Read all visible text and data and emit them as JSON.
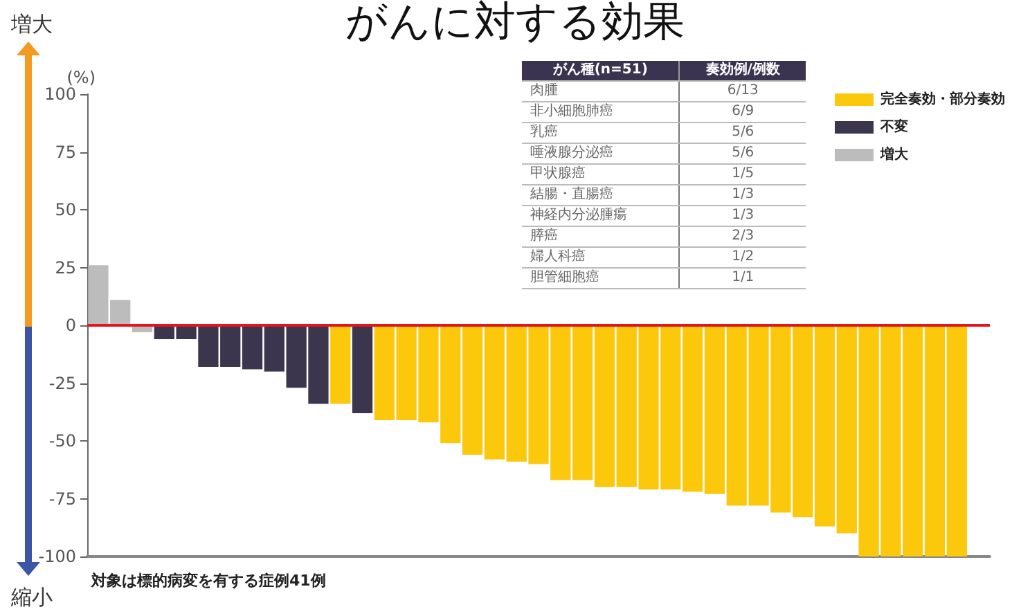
{
  "chart_data": [
    {
      "type": "bar",
      "title": "がんに対する効果",
      "ylabel": "(%)",
      "categories": [
        null,
        null,
        null,
        null,
        null,
        null,
        null,
        null,
        null,
        null,
        null,
        null,
        null,
        null,
        null,
        null,
        null,
        null,
        null,
        null,
        null,
        null,
        null,
        null,
        null,
        null,
        null,
        null,
        null,
        null,
        null,
        null,
        null,
        null,
        null,
        null,
        null,
        null,
        null,
        null,
        null
      ],
      "series": [
        {
          "name": "完全奏効・部分奏効",
          "color": "#fbc80c",
          "values": [
            null,
            null,
            null,
            null,
            null,
            null,
            null,
            null,
            null,
            null,
            null,
            -34,
            null,
            -41,
            -41,
            -42,
            -51,
            -56,
            -58,
            -59,
            -60,
            -67,
            -67,
            -70,
            -70,
            -71,
            -71,
            -72,
            -73,
            -78,
            -78,
            -81,
            -83,
            -87,
            -90,
            -100,
            -100,
            -100,
            -100,
            -100,
            null
          ]
        },
        {
          "name": "不変",
          "color": "#3b364d",
          "values": [
            null,
            null,
            null,
            -6,
            -6,
            -18,
            -18,
            -19,
            -20,
            -27,
            -34,
            null,
            -38,
            null,
            null,
            null,
            null,
            null,
            null,
            null,
            null,
            null,
            null,
            null,
            null,
            null,
            null,
            null,
            null,
            null,
            null,
            null,
            null,
            null,
            null,
            null,
            null,
            null,
            null,
            null,
            null
          ]
        },
        {
          "name": "増大",
          "color": "#bcbcbc",
          "values": [
            26,
            11,
            -3,
            null,
            null,
            null,
            null,
            null,
            null,
            null,
            null,
            null,
            null,
            null,
            null,
            null,
            null,
            null,
            null,
            null,
            null,
            null,
            null,
            null,
            null,
            null,
            null,
            null,
            null,
            null,
            null,
            null,
            null,
            null,
            null,
            null,
            null,
            null,
            null,
            null,
            null
          ]
        }
      ],
      "ylim": [
        -100,
        100
      ],
      "yticks": [
        100,
        75,
        50,
        25,
        0,
        -25,
        -50,
        -75,
        -100
      ],
      "ref_lines": [
        {
          "axis": "y",
          "value": 0,
          "color": "#e8141c"
        }
      ],
      "legend": "top right",
      "grid": false,
      "annotations": [
        "増大",
        "縮小",
        "対象は標的病変を有する症例41例"
      ]
    },
    {
      "type": "other",
      "categories": [
        "肉腫",
        "非小細胞肺癌",
        "乳癌",
        "唾液腺分泌癌",
        "甲状腺癌",
        "結腸・直腸癌",
        "神経内分泌腫瘍",
        "膵癌",
        "婦人科癌",
        "胆管細胞癌"
      ],
      "value_labels": [
        "6/13",
        "6/9",
        "5/6",
        "5/6",
        "1/5",
        "1/3",
        "1/3",
        "2/3",
        "1/2",
        "1/1"
      ],
      "annotations": [
        "がん種(n=51)",
        "奏効例/例数"
      ]
    }
  ]
}
